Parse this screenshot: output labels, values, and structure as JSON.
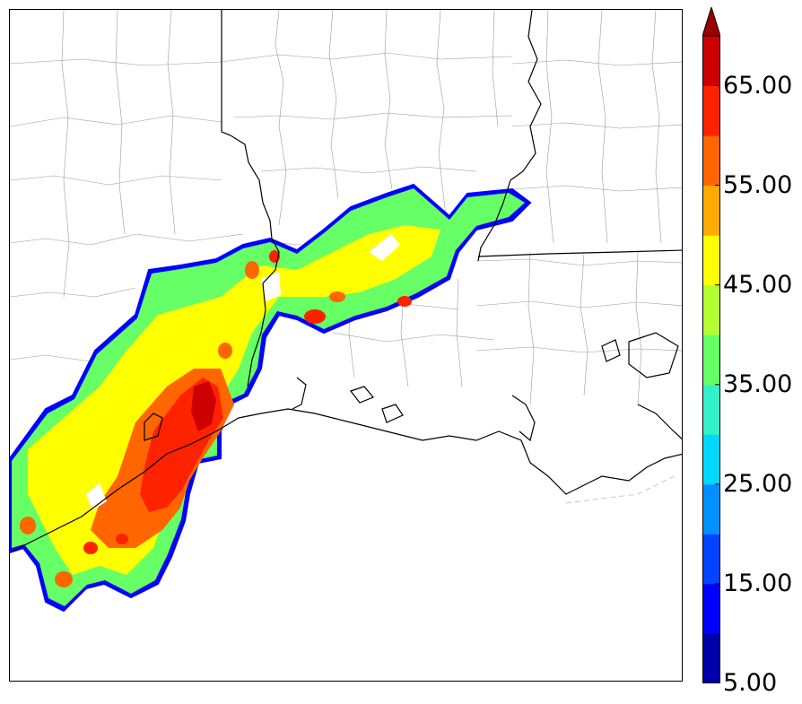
{
  "colorbar": {
    "tick_labels": [
      "5.00",
      "15.00",
      "25.00",
      "35.00",
      "45.00",
      "55.00",
      "65.00"
    ],
    "levels": [
      5,
      10,
      15,
      20,
      25,
      30,
      35,
      40,
      45,
      50,
      55,
      60,
      65,
      70
    ],
    "colors": [
      "#0000aa",
      "#0000ff",
      "#0044ff",
      "#0090ff",
      "#00d8ff",
      "#33f0c8",
      "#66ff66",
      "#b4ff33",
      "#ffff00",
      "#ffaa00",
      "#ff6600",
      "#ff2200",
      "#cc0000",
      "#990000"
    ],
    "extend": "max"
  },
  "map": {
    "fill_colors": {
      "green": "#66ff66",
      "yellow": "#ffff00",
      "orange": "#ff6600",
      "red": "#ff2200",
      "darkred": "#cc0000",
      "cyan": "#33f0c8",
      "edge": "#0000ff"
    },
    "line_colors": {
      "state": "#000000",
      "county": "#9a9a9a"
    }
  }
}
